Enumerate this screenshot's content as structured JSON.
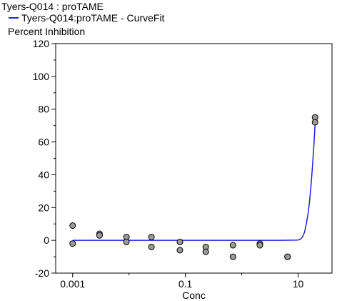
{
  "chart_data": {
    "type": "scatter",
    "title": "Tyers-Q014  : proTAME",
    "ylabel": "Percent Inhibition",
    "xlabel": "Conc",
    "xscale": "log",
    "xlim": [
      0.0005,
      40
    ],
    "ylim": [
      -20,
      120
    ],
    "xticks": [
      0.001,
      0.1,
      10
    ],
    "xtick_labels": [
      "0.001",
      "0.1",
      "10"
    ],
    "yticks": [
      -20,
      0,
      20,
      40,
      60,
      80,
      100,
      120
    ],
    "ytick_labels": [
      "-20",
      "0",
      "20",
      "40",
      "60",
      "80",
      "100",
      "120"
    ],
    "legend": {
      "placement": "top-left",
      "entries": [
        {
          "label": "Tyers-Q014:proTAME - CurveFit",
          "color": "#2020e0"
        }
      ]
    },
    "grid": false,
    "series": [
      {
        "name": "Tyers-Q014:proTAME",
        "type": "scatter",
        "marker_color": "#9a9a9a",
        "x": [
          0.001,
          0.001,
          0.003,
          0.003,
          0.009,
          0.009,
          0.025,
          0.025,
          0.08,
          0.08,
          0.23,
          0.23,
          0.7,
          0.7,
          2.1,
          2.1,
          6.5,
          6.5,
          20,
          20
        ],
        "y": [
          9,
          -2,
          4,
          3,
          2,
          -1,
          2,
          -4,
          -1,
          -6,
          -4,
          -7,
          -3,
          -10,
          -2,
          -3,
          -10,
          -10,
          75,
          72
        ]
      },
      {
        "name": "Tyers-Q014:proTAME - CurveFit",
        "type": "line",
        "color": "#2020e0",
        "x": [
          0.001,
          0.01,
          0.1,
          1,
          5,
          10,
          11,
          12,
          13,
          14,
          15,
          16,
          17,
          18,
          19,
          20
        ],
        "y": [
          0,
          0,
          0,
          0,
          0,
          0.2,
          0.7,
          2,
          5,
          10,
          16,
          24,
          34,
          45,
          57,
          70
        ]
      }
    ]
  }
}
